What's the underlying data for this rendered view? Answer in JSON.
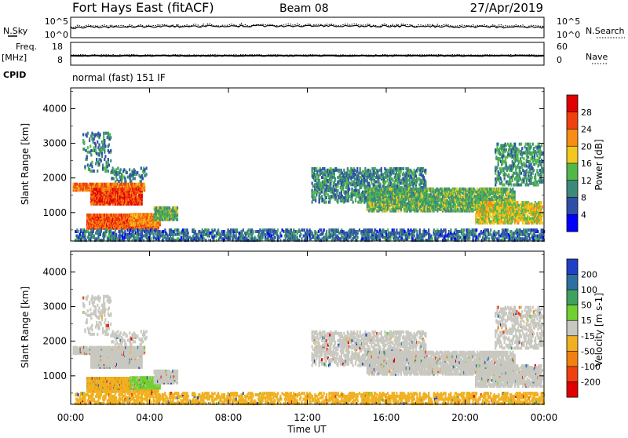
{
  "header": {
    "station": "Fort Hays East (fitACF)",
    "beam": "Beam 08",
    "date": "27/Apr/2019"
  },
  "sky_panel": {
    "left_label": "N.Sky",
    "right_label": "N.Search",
    "left_ticks": [
      "10^5",
      "10^0"
    ],
    "right_ticks": [
      "10^5",
      "10^0"
    ]
  },
  "freq_panel": {
    "left_label_1": "Freq.",
    "left_label_2": "[MHz]",
    "right_label": "Nave",
    "left_ticks": [
      "18",
      "8"
    ],
    "right_ticks": [
      "60",
      "0"
    ],
    "cpid_label": "CPID",
    "cpid_text": "normal (fast) 151 IF"
  },
  "chart_data": [
    {
      "type": "heatmap",
      "title": "",
      "quantity": "Power",
      "ylabel": "Slant Range [km]",
      "xlabel": "",
      "x_tick_labels": [
        "00:00",
        "04:00",
        "08:00",
        "12:00",
        "16:00",
        "20:00",
        "00:00"
      ],
      "y_ticks": [
        1000,
        2000,
        3000,
        4000
      ],
      "ylim": [
        180,
        4600
      ],
      "xlim_hours": [
        0,
        24
      ],
      "colorbar_label": "Power [dB]",
      "colorbar_ticks": [
        4,
        8,
        12,
        16,
        20,
        24,
        28
      ],
      "colors": [
        "#0000ff",
        "#2e4fa8",
        "#3e8a7a",
        "#52b84a",
        "#f2c81f",
        "#f88c14",
        "#f04010",
        "#e00000"
      ]
    },
    {
      "type": "heatmap",
      "title": "",
      "quantity": "Velocity",
      "ylabel": "Slant Range [km]",
      "xlabel": "Time UT",
      "x_tick_labels": [
        "00:00",
        "04:00",
        "08:00",
        "12:00",
        "16:00",
        "20:00",
        "00:00"
      ],
      "y_ticks": [
        1000,
        2000,
        3000,
        4000
      ],
      "ylim": [
        180,
        4600
      ],
      "xlim_hours": [
        0,
        24
      ],
      "colorbar_label": "Velocity [m s-1]",
      "colorbar_ticks": [
        "200",
        "100",
        "50",
        "15",
        "-15",
        "-50",
        "-100",
        "-200"
      ],
      "colors": [
        "#2040c8",
        "#3070a0",
        "#40a060",
        "#70d030",
        "#c8c8c0",
        "#f0b020",
        "#f08010",
        "#f04010",
        "#e00000"
      ]
    }
  ],
  "scatter_regions": [
    {
      "name": "r1",
      "t0": 0.1,
      "t1": 3.7,
      "r0": 1650,
      "r1": 1850,
      "pv": 23,
      "vv": 0,
      "d": 0.85
    },
    {
      "name": "r2",
      "t0": 1.0,
      "t1": 3.6,
      "r0": 1250,
      "r1": 1700,
      "pv": 26,
      "vv": 0,
      "d": 0.8
    },
    {
      "name": "r3",
      "t0": 0.8,
      "t1": 4.4,
      "r0": 550,
      "r1": 950,
      "pv": 25,
      "vv": -40,
      "d": 0.9
    },
    {
      "name": "r4",
      "t0": 3.0,
      "t1": 4.5,
      "r0": 650,
      "r1": 950,
      "pv": 22,
      "vv": 25,
      "d": 0.85
    },
    {
      "name": "r5",
      "t0": 4.2,
      "t1": 5.4,
      "r0": 800,
      "r1": 1150,
      "pv": 13,
      "vv": 0,
      "d": 0.6
    },
    {
      "name": "r6",
      "t0": 0.6,
      "t1": 2.0,
      "r0": 2200,
      "r1": 3300,
      "pv": 10,
      "vv": 0,
      "d": 0.18
    },
    {
      "name": "r7",
      "t0": 2.0,
      "t1": 3.8,
      "r0": 1900,
      "r1": 2300,
      "pv": 9,
      "vv": 0,
      "d": 0.25
    },
    {
      "name": "r8",
      "t0": 12.2,
      "t1": 18.0,
      "r0": 1300,
      "r1": 2300,
      "pv": 10,
      "vv": 0,
      "d": 0.35
    },
    {
      "name": "r9",
      "t0": 15.0,
      "t1": 22.5,
      "r0": 1050,
      "r1": 1700,
      "pv": 13,
      "vv": 0,
      "d": 0.55
    },
    {
      "name": "r10",
      "t0": 20.5,
      "t1": 23.9,
      "r0": 700,
      "r1": 1300,
      "pv": 17,
      "vv": 0,
      "d": 0.5
    },
    {
      "name": "r11",
      "t0": 21.5,
      "t1": 23.9,
      "r0": 1800,
      "r1": 3000,
      "pv": 11,
      "vv": 0,
      "d": 0.3
    },
    {
      "name": "r12",
      "t0": 0.2,
      "t1": 24.0,
      "r0": 200,
      "r1": 500,
      "pv": 8,
      "vv": -30,
      "d": 0.35
    }
  ]
}
